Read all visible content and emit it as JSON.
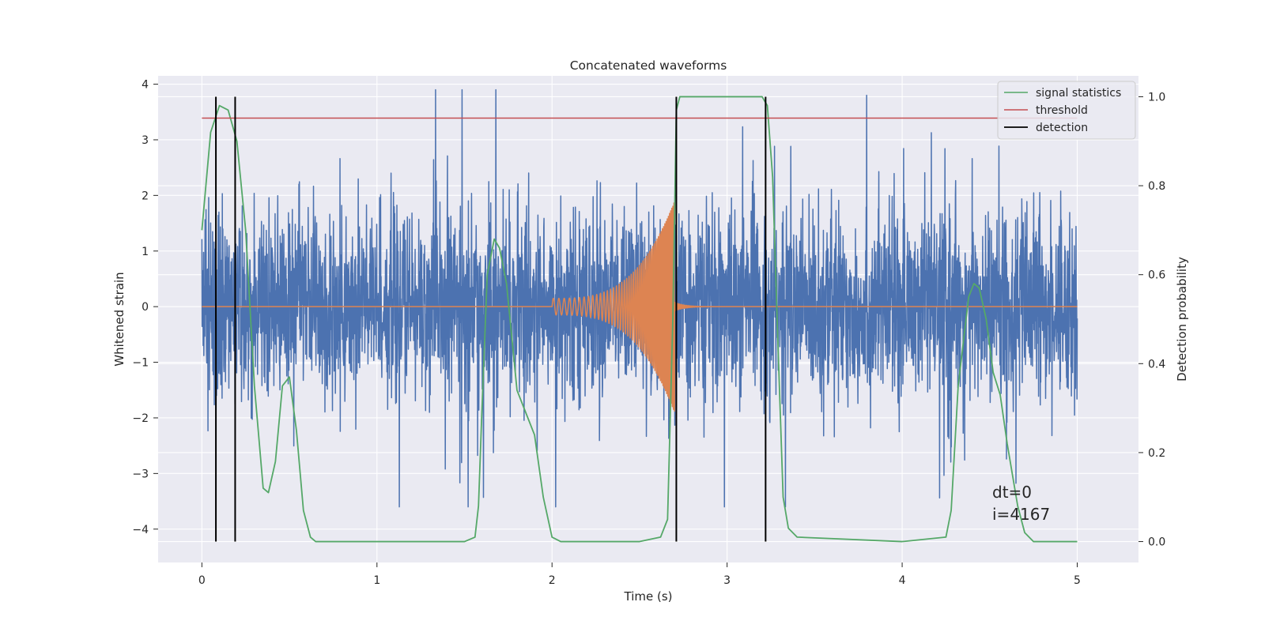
{
  "chart_data": {
    "type": "line",
    "title": "Concatenated waveforms",
    "xlabel": "Time (s)",
    "ylabel": "Whitened strain",
    "y2label": "Detection probability",
    "xlim": [
      -0.25,
      5.35
    ],
    "ylim": [
      -4.6,
      4.15
    ],
    "y2lim": [
      -0.047,
      1.047
    ],
    "xticks": [
      0,
      1,
      2,
      3,
      4,
      5
    ],
    "yticks": [
      -4,
      -3,
      -2,
      -1,
      0,
      1,
      2,
      3,
      4
    ],
    "y2ticks": [
      0.0,
      0.2,
      0.4,
      0.6,
      0.8,
      1.0
    ],
    "grid": true,
    "legend_position": "top-right",
    "legend": [
      "signal statistics",
      "threshold",
      "detection"
    ],
    "colors": {
      "noise": "#4c72b0",
      "injected_signal": "#dd8452",
      "signal_statistics": "#55a868",
      "threshold": "#c44e52",
      "detection": "#000000",
      "axes_background": "#eaeaf2",
      "grid": "#ffffff"
    },
    "series": [
      {
        "name": "signal statistics",
        "axis": "right",
        "x": [
          0,
          0.05,
          0.1,
          0.15,
          0.2,
          0.25,
          0.3,
          0.35,
          0.38,
          0.42,
          0.46,
          0.5,
          0.54,
          0.58,
          0.62,
          0.65,
          1.0,
          1.5,
          1.56,
          1.58,
          1.6,
          1.63,
          1.67,
          1.7,
          1.74,
          1.78,
          1.8,
          1.84,
          1.9,
          1.95,
          2.0,
          2.05,
          2.5,
          2.62,
          2.66,
          2.69,
          2.71,
          2.73,
          2.76,
          3.1,
          3.2,
          3.23,
          3.26,
          3.29,
          3.32,
          3.35,
          3.4,
          4.0,
          4.25,
          4.28,
          4.32,
          4.38,
          4.41,
          4.44,
          4.48,
          4.52,
          4.56,
          4.6,
          4.66,
          4.7,
          4.75,
          5.0
        ],
        "values": [
          0.7,
          0.92,
          0.98,
          0.97,
          0.9,
          0.7,
          0.35,
          0.12,
          0.11,
          0.18,
          0.35,
          0.37,
          0.25,
          0.07,
          0.01,
          0.0,
          0.0,
          0.0,
          0.01,
          0.08,
          0.3,
          0.6,
          0.68,
          0.66,
          0.58,
          0.42,
          0.34,
          0.3,
          0.24,
          0.1,
          0.01,
          0.0,
          0.0,
          0.01,
          0.05,
          0.5,
          0.97,
          1.0,
          1.0,
          1.0,
          1.0,
          0.98,
          0.82,
          0.45,
          0.1,
          0.03,
          0.01,
          0.0,
          0.01,
          0.07,
          0.35,
          0.55,
          0.58,
          0.57,
          0.5,
          0.38,
          0.33,
          0.22,
          0.08,
          0.02,
          0.0,
          0.0
        ]
      },
      {
        "name": "threshold",
        "axis": "right",
        "x": [
          0,
          5
        ],
        "values": [
          0.952,
          0.952
        ]
      },
      {
        "name": "detection",
        "axis": "right",
        "x": [
          0.08,
          0.19,
          2.71,
          3.22
        ],
        "values": [
          1.0,
          1.0,
          1.0,
          1.0
        ]
      },
      {
        "name": "",
        "axis": "left",
        "kind": "whitened noise",
        "x": [
          0,
          5
        ],
        "typical_range": [
          -1.3,
          1.3
        ],
        "peak_range": [
          -3.6,
          3.9
        ]
      },
      {
        "name": "",
        "axis": "left",
        "kind": "chirp",
        "x": [
          2.0,
          2.7
        ],
        "amplitude_start": 0.15,
        "amplitude_peak": 1.9,
        "ringdown_end": 3.0
      }
    ],
    "annotations": [
      "dt=0",
      "i=4167"
    ]
  }
}
